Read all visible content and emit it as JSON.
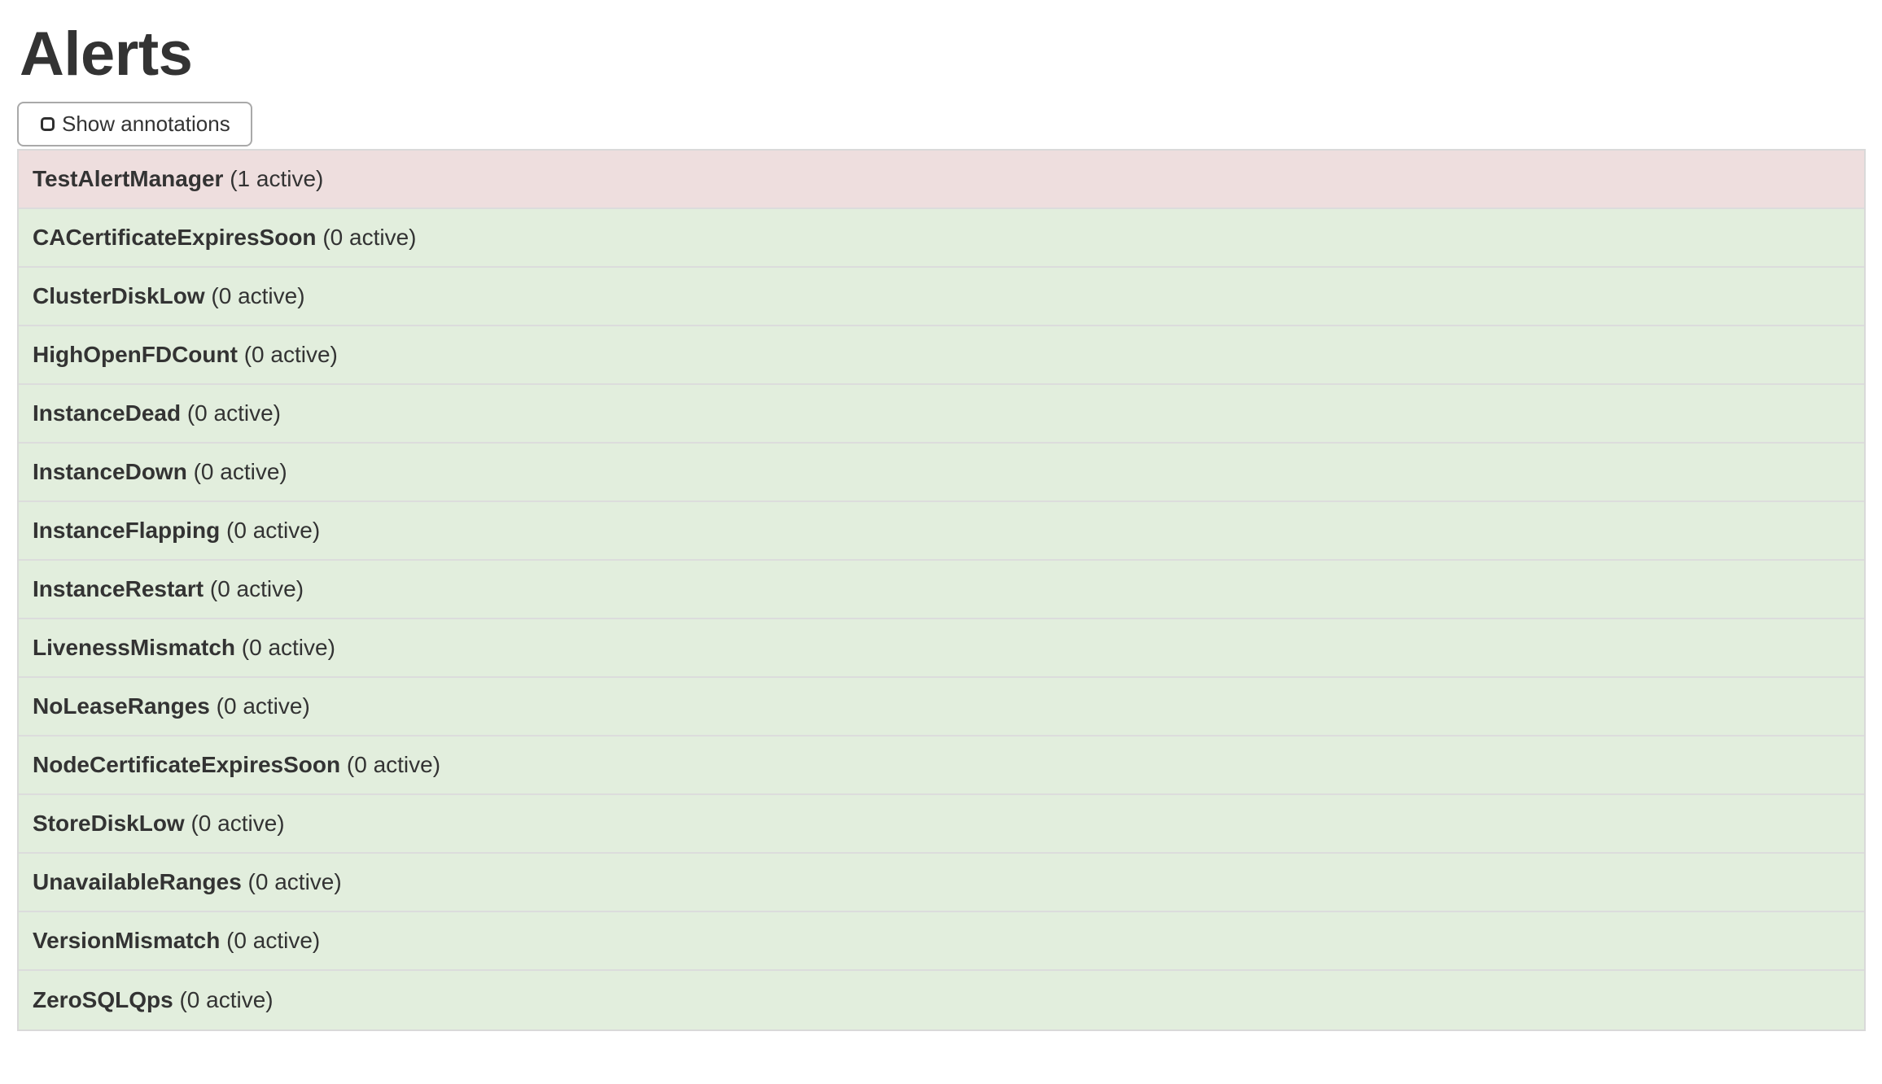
{
  "page": {
    "title": "Alerts"
  },
  "toolbar": {
    "show_annotations_label": "Show annotations",
    "checkbox_checked": false
  },
  "alerts": {
    "items": [
      {
        "name": "TestAlertManager",
        "active_count": 1,
        "count_label": "(1 active)",
        "state": "firing"
      },
      {
        "name": "CACertificateExpiresSoon",
        "active_count": 0,
        "count_label": "(0 active)",
        "state": "inactive"
      },
      {
        "name": "ClusterDiskLow",
        "active_count": 0,
        "count_label": "(0 active)",
        "state": "inactive"
      },
      {
        "name": "HighOpenFDCount",
        "active_count": 0,
        "count_label": "(0 active)",
        "state": "inactive"
      },
      {
        "name": "InstanceDead",
        "active_count": 0,
        "count_label": "(0 active)",
        "state": "inactive"
      },
      {
        "name": "InstanceDown",
        "active_count": 0,
        "count_label": "(0 active)",
        "state": "inactive"
      },
      {
        "name": "InstanceFlapping",
        "active_count": 0,
        "count_label": "(0 active)",
        "state": "inactive"
      },
      {
        "name": "InstanceRestart",
        "active_count": 0,
        "count_label": "(0 active)",
        "state": "inactive"
      },
      {
        "name": "LivenessMismatch",
        "active_count": 0,
        "count_label": "(0 active)",
        "state": "inactive"
      },
      {
        "name": "NoLeaseRanges",
        "active_count": 0,
        "count_label": "(0 active)",
        "state": "inactive"
      },
      {
        "name": "NodeCertificateExpiresSoon",
        "active_count": 0,
        "count_label": "(0 active)",
        "state": "inactive"
      },
      {
        "name": "StoreDiskLow",
        "active_count": 0,
        "count_label": "(0 active)",
        "state": "inactive"
      },
      {
        "name": "UnavailableRanges",
        "active_count": 0,
        "count_label": "(0 active)",
        "state": "inactive"
      },
      {
        "name": "VersionMismatch",
        "active_count": 0,
        "count_label": "(0 active)",
        "state": "inactive"
      },
      {
        "name": "ZeroSQLQps",
        "active_count": 0,
        "count_label": "(0 active)",
        "state": "inactive"
      }
    ]
  },
  "colors": {
    "firing_bg": "#eedede",
    "inactive_bg": "#e2eedd",
    "row_border": "#dcdcdc",
    "text": "#333333"
  }
}
